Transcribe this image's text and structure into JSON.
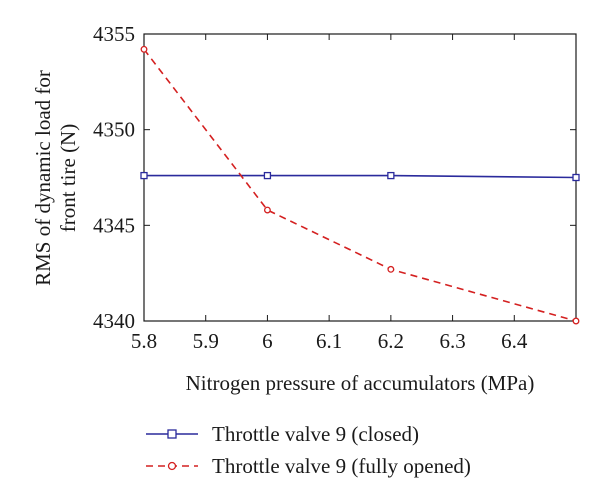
{
  "chart_data": {
    "type": "line",
    "xlabel": "Nitrogen pressure of accumulators (MPa)",
    "ylabel_lines": [
      "RMS of dynamic load for",
      "front tire (N)"
    ],
    "xlim": [
      5.8,
      6.5
    ],
    "ylim": [
      4340,
      4355
    ],
    "xticks": [
      5.8,
      5.9,
      6.0,
      6.1,
      6.2,
      6.3,
      6.4
    ],
    "xtick_labels": [
      "5.8",
      "5.9",
      "6",
      "6.1",
      "6.2",
      "6.3",
      "6.4"
    ],
    "yticks": [
      4340,
      4345,
      4350,
      4355
    ],
    "ytick_labels": [
      "4340",
      "4345",
      "4350",
      "4355"
    ],
    "grid": false,
    "legend_position": "bottom",
    "series": [
      {
        "name": "Throttle valve 9 (closed)",
        "color": "#2a2a9c",
        "line_style": "solid",
        "marker": "square",
        "x": [
          5.8,
          6.0,
          6.2,
          6.5
        ],
        "y": [
          4347.6,
          4347.6,
          4347.6,
          4347.5
        ]
      },
      {
        "name": "Throttle valve 9 (fully opened)",
        "color": "#d42020",
        "line_style": "dashed",
        "marker": "circle",
        "x": [
          5.8,
          6.0,
          6.2,
          6.5
        ],
        "y": [
          4354.2,
          4345.8,
          4342.7,
          4340.0
        ]
      }
    ]
  }
}
